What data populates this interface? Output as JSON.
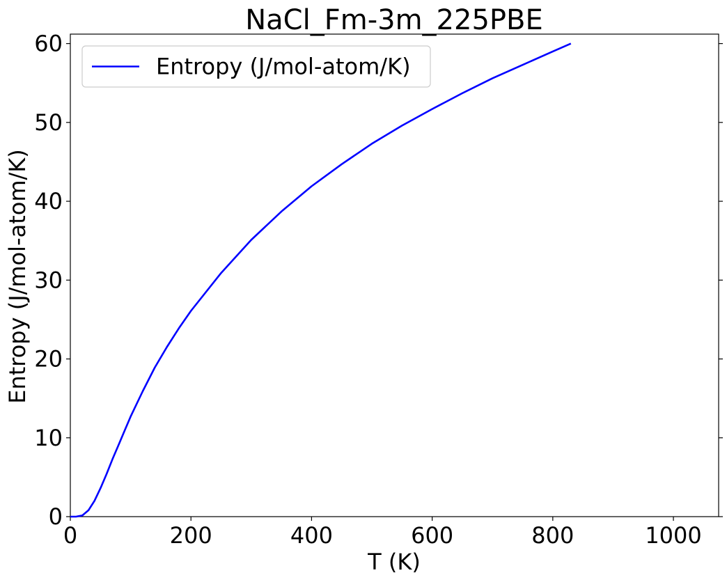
{
  "chart_data": {
    "type": "line",
    "title": "NaCl_Fm-3m_225PBE",
    "xlabel": "T (K)",
    "ylabel": "Entropy (J/mol-atom/K)",
    "xlim": [
      0,
      1075
    ],
    "ylim": [
      0,
      61.2
    ],
    "x_ticks": [
      0,
      200,
      400,
      600,
      800,
      1000
    ],
    "y_ticks": [
      0,
      10,
      20,
      30,
      40,
      50,
      60
    ],
    "grid": false,
    "legend_position": "upper-left",
    "series": [
      {
        "name": "Entropy (J/mol-atom/K)",
        "color": "#0000ff",
        "x": [
          0,
          10,
          20,
          30,
          40,
          50,
          60,
          70,
          80,
          90,
          100,
          120,
          140,
          160,
          180,
          200,
          250,
          300,
          350,
          400,
          450,
          500,
          550,
          600,
          650,
          700,
          750,
          800,
          830
        ],
        "y": [
          0,
          0.01,
          0.15,
          0.8,
          2.0,
          3.6,
          5.4,
          7.3,
          9.1,
          10.9,
          12.7,
          15.9,
          18.9,
          21.5,
          23.9,
          26.1,
          30.9,
          35.1,
          38.7,
          41.9,
          44.7,
          47.3,
          49.6,
          51.7,
          53.7,
          55.6,
          57.3,
          59.0,
          60.0
        ]
      }
    ]
  }
}
